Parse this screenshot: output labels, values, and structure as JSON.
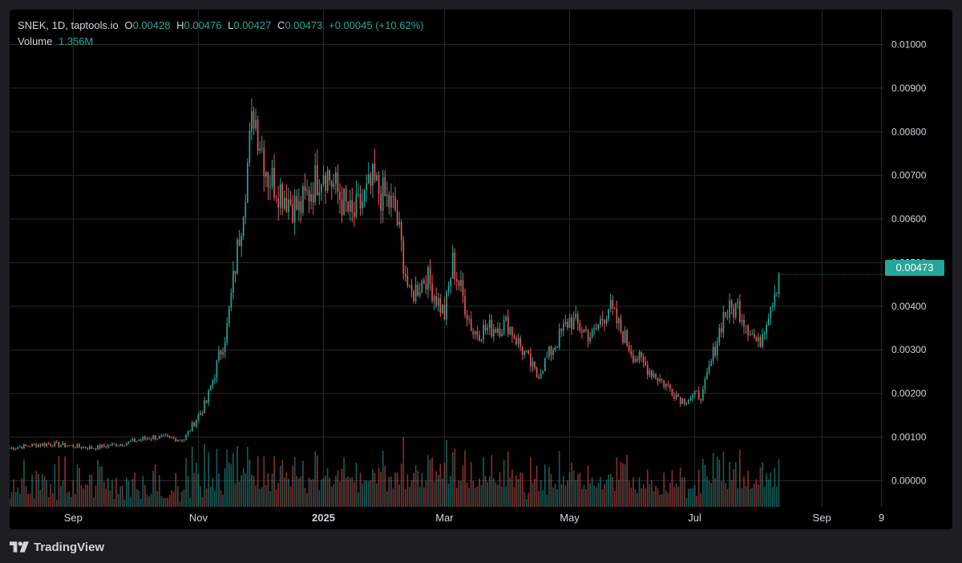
{
  "legend": {
    "title": "SNEK, 1D, taptools.io",
    "o_label": "O",
    "o_value": "0.00428",
    "h_label": "H",
    "h_value": "0.00476",
    "l_label": "L",
    "l_value": "0.00427",
    "c_label": "C",
    "c_value": "0.00473",
    "change": "+0.00045 (+10.62%)",
    "volume_label": "Volume",
    "volume_value": "1.356M"
  },
  "last_price_label": "0.00473",
  "brand": "TradingView",
  "colors": {
    "up": "#26a69a",
    "down": "#ef5350",
    "grid": "#2a2a2e",
    "text": "#d1d4dc",
    "background": "#000000"
  },
  "chart_data": {
    "type": "candlestick",
    "interval": "1D",
    "ylim": [
      -0.0006,
      0.0108
    ],
    "y_ticks": [
      "0.00000",
      "0.00100",
      "0.00200",
      "0.00300",
      "0.00400",
      "0.00500",
      "0.00600",
      "0.00700",
      "0.00800",
      "0.00900",
      "0.01000"
    ],
    "x_ticks": [
      {
        "label": "Sep",
        "date": "2024-09-01"
      },
      {
        "label": "Nov",
        "date": "2024-11-01"
      },
      {
        "label": "2025",
        "date": "2025-01-01"
      },
      {
        "label": "Mar",
        "date": "2025-03-01"
      },
      {
        "label": "May",
        "date": "2025-05-01"
      },
      {
        "label": "Jul",
        "date": "2025-07-01"
      },
      {
        "label": "Sep",
        "date": "2025-09-01"
      },
      {
        "label": "9",
        "date": "2025-09-30"
      }
    ],
    "x_range": [
      "2024-08-01",
      "2025-10-01"
    ],
    "last_date": "2025-08-11",
    "approx_closes": [
      {
        "date": "2024-08-01",
        "close": 0.00075
      },
      {
        "date": "2024-08-20",
        "close": 0.00085
      },
      {
        "date": "2024-09-10",
        "close": 0.00075
      },
      {
        "date": "2024-09-25",
        "close": 0.00085
      },
      {
        "date": "2024-10-10",
        "close": 0.001
      },
      {
        "date": "2024-10-25",
        "close": 0.00095
      },
      {
        "date": "2024-11-05",
        "close": 0.0018
      },
      {
        "date": "2024-11-15",
        "close": 0.0035
      },
      {
        "date": "2024-11-22",
        "close": 0.006
      },
      {
        "date": "2024-11-28",
        "close": 0.0085
      },
      {
        "date": "2024-12-05",
        "close": 0.007
      },
      {
        "date": "2024-12-20",
        "close": 0.0062
      },
      {
        "date": "2025-01-01",
        "close": 0.0072
      },
      {
        "date": "2025-01-15",
        "close": 0.006
      },
      {
        "date": "2025-01-25",
        "close": 0.0068
      },
      {
        "date": "2025-02-05",
        "close": 0.0062
      },
      {
        "date": "2025-02-12",
        "close": 0.0042
      },
      {
        "date": "2025-02-20",
        "close": 0.0047
      },
      {
        "date": "2025-03-01",
        "close": 0.0038
      },
      {
        "date": "2025-03-05",
        "close": 0.005
      },
      {
        "date": "2025-03-15",
        "close": 0.0034
      },
      {
        "date": "2025-04-01",
        "close": 0.0036
      },
      {
        "date": "2025-04-15",
        "close": 0.0024
      },
      {
        "date": "2025-05-01",
        "close": 0.0037
      },
      {
        "date": "2025-05-12",
        "close": 0.0033
      },
      {
        "date": "2025-05-20",
        "close": 0.004
      },
      {
        "date": "2025-06-01",
        "close": 0.0029
      },
      {
        "date": "2025-06-10",
        "close": 0.0025
      },
      {
        "date": "2025-06-25",
        "close": 0.00185
      },
      {
        "date": "2025-07-05",
        "close": 0.002
      },
      {
        "date": "2025-07-15",
        "close": 0.0038
      },
      {
        "date": "2025-07-22",
        "close": 0.004
      },
      {
        "date": "2025-08-01",
        "close": 0.0031
      },
      {
        "date": "2025-08-11",
        "close": 0.00473
      }
    ],
    "volume_series": {
      "name": "Volume",
      "last": "1.356M"
    }
  }
}
